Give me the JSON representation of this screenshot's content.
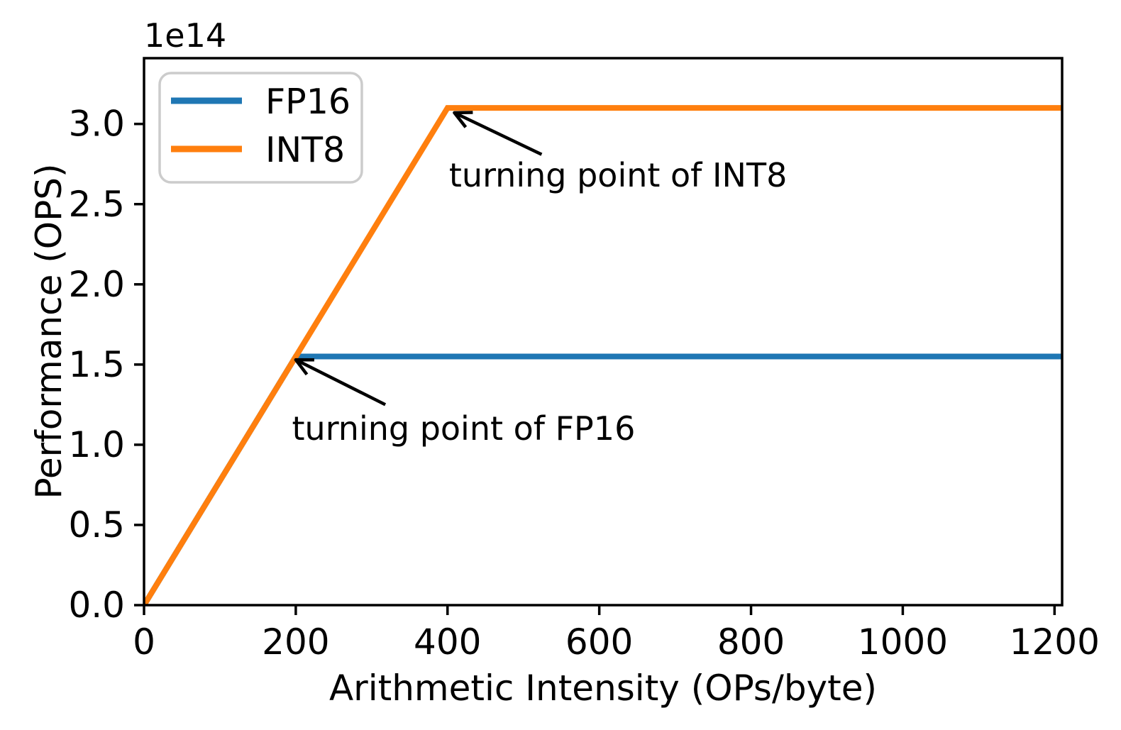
{
  "chart_data": {
    "type": "line",
    "title": "",
    "xlabel": "Arithmetic Intensity (OPs/byte)",
    "ylabel": "Performance (OPS)",
    "y_offset_label": "1e14",
    "xlim": [
      0,
      1210
    ],
    "ylim": [
      0,
      341000000000000.0
    ],
    "grid": false,
    "xticks": {
      "values": [
        0,
        200,
        400,
        600,
        800,
        1000,
        1200
      ],
      "labels": [
        "0",
        "200",
        "400",
        "600",
        "800",
        "1000",
        "1200"
      ]
    },
    "yticks": {
      "values": [
        0,
        50000000000000.0,
        100000000000000.0,
        150000000000000.0,
        200000000000000.0,
        250000000000000.0,
        300000000000000.0
      ],
      "labels": [
        "0.0",
        "0.5",
        "1.0",
        "1.5",
        "2.0",
        "2.5",
        "3.0"
      ]
    },
    "legend": {
      "position": "upper-left",
      "entries": [
        {
          "label": "FP16",
          "color": "#1f77b4"
        },
        {
          "label": "INT8",
          "color": "#ff7f0e"
        }
      ]
    },
    "series": [
      {
        "name": "FP16",
        "color": "#1f77b4",
        "turning_point_intensity": 200,
        "peak_performance_ops": 155000000000000.0,
        "points": [
          [
            0,
            0
          ],
          [
            200,
            155000000000000.0
          ],
          [
            1210,
            155000000000000.0
          ]
        ]
      },
      {
        "name": "INT8",
        "color": "#ff7f0e",
        "turning_point_intensity": 400,
        "peak_performance_ops": 310000000000000.0,
        "points": [
          [
            0,
            0
          ],
          [
            400,
            310000000000000.0
          ],
          [
            1210,
            310000000000000.0
          ]
        ]
      }
    ],
    "annotations": [
      {
        "text": "turning point of INT8",
        "text_xy": [
          402,
          261000000000000.0
        ],
        "arrow_tail_xy": [
          524,
          281000000000000.0
        ],
        "arrow_head_xy": [
          409,
          307000000000000.0
        ],
        "color": "#000000"
      },
      {
        "text": "turning point of FP16",
        "text_xy": [
          195,
          103000000000000.0
        ],
        "arrow_tail_xy": [
          318,
          125000000000000.0
        ],
        "arrow_head_xy": [
          200,
          153000000000000.0
        ],
        "color": "#000000"
      }
    ]
  }
}
